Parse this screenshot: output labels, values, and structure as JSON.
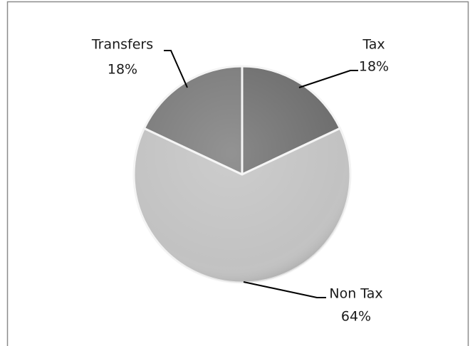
{
  "chart_data": {
    "type": "pie",
    "categories": [
      "Tax",
      "Non Tax",
      "Transfers"
    ],
    "values": [
      18,
      64,
      18
    ],
    "value_labels": [
      "18%",
      "64%",
      "18%"
    ],
    "colors": [
      "#6e6e6e",
      "#c2c2c2",
      "#7b7b7b"
    ]
  }
}
